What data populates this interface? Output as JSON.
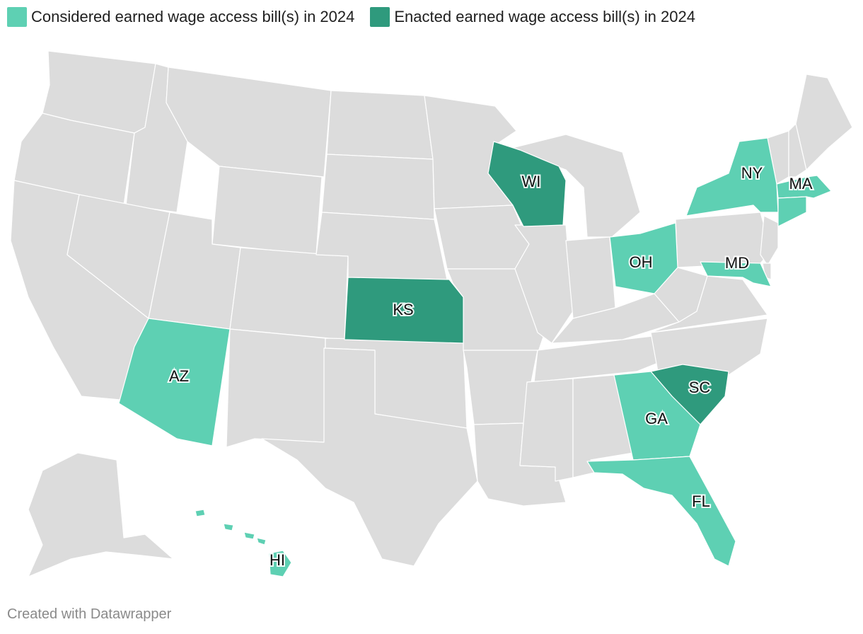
{
  "legend": {
    "considered": {
      "label": "Considered earned wage access bill(s) in 2024",
      "color": "#5ed0b3"
    },
    "enacted": {
      "label": "Enacted earned wage access bill(s) in 2024",
      "color": "#2f9a7d"
    }
  },
  "colors": {
    "base": "#dcdcdc",
    "border": "#ffffff"
  },
  "states": [
    {
      "code": "AZ",
      "label": "AZ",
      "status": "considered"
    },
    {
      "code": "KS",
      "label": "KS",
      "status": "enacted"
    },
    {
      "code": "WI",
      "label": "WI",
      "status": "enacted"
    },
    {
      "code": "OH",
      "label": "OH",
      "status": "considered"
    },
    {
      "code": "NY",
      "label": "NY",
      "status": "considered"
    },
    {
      "code": "MA",
      "label": "MA",
      "status": "considered"
    },
    {
      "code": "MD",
      "label": "MD",
      "status": "considered"
    },
    {
      "code": "SC",
      "label": "SC",
      "status": "enacted"
    },
    {
      "code": "GA",
      "label": "GA",
      "status": "considered"
    },
    {
      "code": "FL",
      "label": "FL",
      "status": "considered"
    },
    {
      "code": "HI",
      "label": "HI",
      "status": "considered"
    }
  ],
  "credit": "Created with Datawrapper"
}
